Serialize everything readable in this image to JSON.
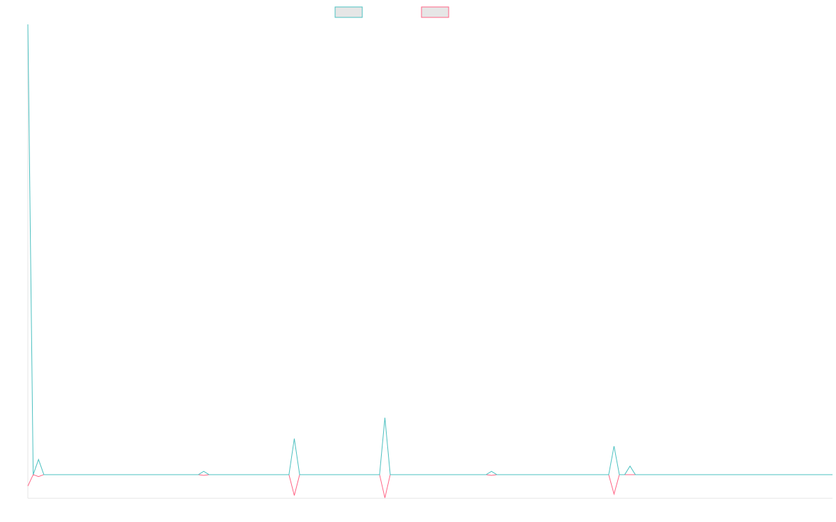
{
  "chart_data": {
    "type": "line",
    "categories": [
      null,
      null,
      null,
      null,
      null,
      null,
      null,
      null,
      null,
      null,
      null,
      null,
      null,
      null,
      null,
      null,
      null,
      null,
      null,
      null,
      null,
      null,
      null,
      null,
      null,
      null,
      null,
      null,
      null,
      null,
      null,
      null,
      null,
      null,
      null,
      null,
      null,
      null,
      null,
      null,
      null,
      null,
      null,
      null,
      null,
      null,
      null,
      null,
      null,
      null,
      null,
      null,
      null,
      null,
      null,
      null,
      null,
      null,
      null,
      null,
      null,
      null,
      null,
      null,
      null,
      null,
      null,
      null,
      null,
      null,
      null,
      null,
      null,
      null,
      null,
      null,
      null,
      null,
      null,
      null,
      null,
      null,
      null,
      null,
      null,
      null,
      null,
      null,
      null,
      null,
      null,
      null,
      null,
      null,
      null,
      null,
      null,
      null,
      null,
      null,
      null,
      null,
      null,
      null,
      null,
      null,
      null,
      null,
      null,
      null,
      null,
      null,
      null,
      null,
      null,
      null,
      null,
      null,
      null,
      null,
      null,
      null,
      null,
      null,
      null,
      null,
      null,
      null,
      null,
      null,
      null,
      null,
      null,
      null,
      null,
      null,
      null,
      null,
      null,
      null,
      null,
      null,
      null,
      null,
      null,
      null,
      null,
      null,
      null,
      null,
      null,
      null
    ],
    "series": [
      {
        "color": "#4bc0c0",
        "values": [
          95,
          0,
          3.2,
          0,
          0,
          0,
          0,
          0,
          0,
          0,
          0,
          0,
          0,
          0,
          0,
          0,
          0,
          0,
          0,
          0,
          0,
          0,
          0,
          0,
          0,
          0,
          0,
          0,
          0,
          0,
          0,
          0,
          0,
          0.7,
          0,
          0,
          0,
          0,
          0,
          0,
          0,
          0,
          0,
          0,
          0,
          0,
          0,
          0,
          0,
          0,
          7.6,
          0,
          0,
          0,
          0,
          0,
          0,
          0,
          0,
          0,
          0,
          0,
          0,
          0,
          0,
          0,
          0,
          12,
          0,
          0,
          0,
          0,
          0,
          0,
          0,
          0,
          0,
          0,
          0,
          0,
          0,
          0,
          0,
          0,
          0,
          0,
          0,
          0.7,
          0,
          0,
          0,
          0,
          0,
          0,
          0,
          0,
          0,
          0,
          0,
          0,
          0,
          0,
          0,
          0,
          0,
          0,
          0,
          0,
          0,
          0,
          6,
          0,
          0,
          1.8,
          0,
          0,
          0,
          0,
          0,
          0,
          0,
          0,
          0,
          0,
          0,
          0,
          0,
          0,
          0,
          0,
          0,
          0,
          0,
          0,
          0,
          0,
          0,
          0,
          0,
          0,
          0,
          0,
          0,
          0,
          0,
          0,
          0,
          0,
          0,
          0,
          0,
          0
        ]
      },
      {
        "color": "#ff6384",
        "values": [
          -2.4,
          0,
          -0.4,
          0,
          0,
          0,
          0,
          0,
          0,
          0,
          0,
          0,
          0,
          0,
          0,
          0,
          0,
          0,
          0,
          0,
          0,
          0,
          0,
          0,
          0,
          0,
          0,
          0,
          0,
          0,
          0,
          0,
          0,
          -0.15,
          0,
          0,
          0,
          0,
          0,
          0,
          0,
          0,
          0,
          0,
          0,
          0,
          0,
          0,
          0,
          0,
          -4.4,
          0,
          0,
          0,
          0,
          0,
          0,
          0,
          0,
          0,
          0,
          0,
          0,
          0,
          0,
          0,
          0,
          -4.9,
          0,
          0,
          0,
          0,
          0,
          0,
          0,
          0,
          0,
          0,
          0,
          0,
          0,
          0,
          0,
          0,
          0,
          0,
          0,
          -0.15,
          0,
          0,
          0,
          0,
          0,
          0,
          0,
          0,
          0,
          0,
          0,
          0,
          0,
          0,
          0,
          0,
          0,
          0,
          0,
          0,
          0,
          0,
          -4.1,
          0,
          0,
          0,
          0,
          0,
          0,
          0,
          0,
          0,
          0,
          0,
          0,
          0,
          0,
          0,
          0,
          0,
          0,
          0,
          0,
          0,
          0,
          0,
          0,
          0,
          0,
          0,
          0,
          0,
          0,
          0,
          0,
          0,
          0,
          0,
          0,
          0,
          0,
          0,
          0,
          0
        ]
      }
    ],
    "ylim": [
      -5,
      95
    ]
  }
}
